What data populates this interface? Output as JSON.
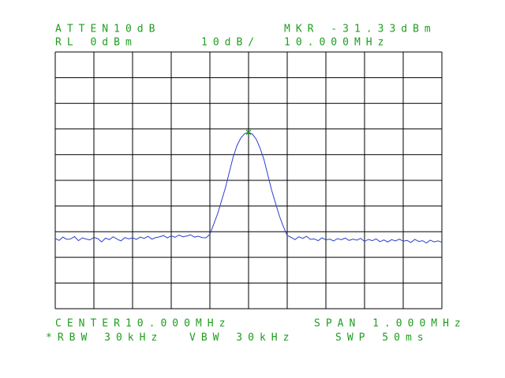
{
  "chart_data": {
    "type": "line",
    "annotations": [
      "ATTEN10dB",
      "MKR -31.33dBm",
      "RL 0dBm",
      "10dB/",
      "10.000MHz",
      "CENTER10.000MHz",
      "SPAN 1.000MHz",
      "*RBW 30kHz",
      "VBW 30kHz",
      "SWP 50ms"
    ],
    "x": [
      9.5,
      9.51,
      9.52,
      9.53,
      9.54,
      9.55,
      9.56,
      9.57,
      9.58,
      9.59,
      9.6,
      9.61,
      9.62,
      9.63,
      9.64,
      9.65,
      9.66,
      9.67,
      9.68,
      9.69,
      9.7,
      9.71,
      9.72,
      9.73,
      9.74,
      9.75,
      9.76,
      9.77,
      9.78,
      9.79,
      9.8,
      9.81,
      9.82,
      9.83,
      9.84,
      9.85,
      9.86,
      9.87,
      9.88,
      9.89,
      9.9,
      9.91,
      9.92,
      9.93,
      9.94,
      9.95,
      9.96,
      9.97,
      9.98,
      9.99,
      10.0,
      10.01,
      10.02,
      10.03,
      10.04,
      10.05,
      10.06,
      10.07,
      10.08,
      10.09,
      10.1,
      10.11,
      10.12,
      10.13,
      10.14,
      10.15,
      10.16,
      10.17,
      10.18,
      10.19,
      10.2,
      10.21,
      10.22,
      10.23,
      10.24,
      10.25,
      10.26,
      10.27,
      10.28,
      10.29,
      10.3,
      10.31,
      10.32,
      10.33,
      10.34,
      10.35,
      10.36,
      10.37,
      10.38,
      10.39,
      10.4,
      10.41,
      10.42,
      10.43,
      10.44,
      10.45,
      10.46,
      10.47,
      10.48,
      10.49,
      10.5
    ],
    "values": [
      -72.6,
      -73.4,
      -72.1,
      -73.0,
      -72.8,
      -71.9,
      -73.5,
      -72.4,
      -72.9,
      -73.2,
      -72.2,
      -72.7,
      -74.0,
      -72.5,
      -73.1,
      -72.0,
      -72.9,
      -73.6,
      -72.3,
      -72.8,
      -72.4,
      -73.0,
      -72.1,
      -72.6,
      -71.8,
      -72.9,
      -72.3,
      -72.0,
      -71.5,
      -72.4,
      -71.6,
      -72.2,
      -71.3,
      -72.0,
      -71.7,
      -71.2,
      -72.1,
      -71.8,
      -72.3,
      -72.4,
      -71,
      -67,
      -63,
      -58,
      -53,
      -47,
      -41,
      -36.5,
      -33.5,
      -31.8,
      -31.3,
      -32,
      -34,
      -37.5,
      -42,
      -48,
      -54,
      -59,
      -64,
      -68,
      -71.5,
      -72.2,
      -73.1,
      -72.0,
      -72.6,
      -71.8,
      -73.0,
      -72.8,
      -73.5,
      -72.4,
      -73.2,
      -72.9,
      -73.6,
      -72.7,
      -73.1,
      -72.5,
      -73.4,
      -72.9,
      -73.3,
      -72.6,
      -73.8,
      -73.0,
      -73.5,
      -72.8,
      -73.9,
      -73.2,
      -74.0,
      -73.1,
      -73.6,
      -72.9,
      -73.7,
      -73.4,
      -74.2,
      -73.0,
      -73.8,
      -73.5,
      -74.4,
      -73.3,
      -74.0,
      -73.6,
      -74.1
    ],
    "color": "#2a3fd0",
    "text_color": "#1e9e1e",
    "marker_color": "#1e9e1e",
    "xlim": [
      9.5,
      10.5
    ],
    "ylim": [
      -100,
      0
    ],
    "xticks": [
      9.5,
      9.6,
      9.7,
      9.8,
      9.9,
      10.0,
      10.1,
      10.2,
      10.3,
      10.4,
      10.5
    ],
    "yticks": [
      0,
      -10,
      -20,
      -30,
      -40,
      -50,
      -60,
      -70,
      -80,
      -90,
      -100
    ],
    "grid": true,
    "tick_labels": false
  }
}
